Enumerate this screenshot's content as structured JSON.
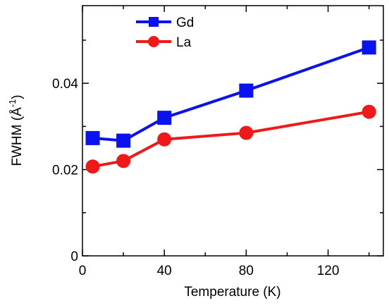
{
  "chart_data": {
    "type": "line",
    "xlabel": "Temperature (K)",
    "ylabel": {
      "prefix": "FWHM (Å",
      "superscript": "-1",
      "suffix": ")"
    },
    "x_tick_labels": [
      "0",
      "40",
      "80",
      "120"
    ],
    "y_tick_labels": [
      "0",
      "0.02",
      "0.04"
    ],
    "x_ticks": [
      0,
      20,
      40,
      60,
      80,
      100,
      120,
      140
    ],
    "y_ticks": [
      0,
      0.01,
      0.02,
      0.03,
      0.04,
      0.05
    ],
    "labeled_x_ticks": [
      0,
      40,
      80,
      120
    ],
    "labeled_y_ticks": [
      0,
      0.02,
      0.04
    ],
    "xlim": [
      0,
      147
    ],
    "ylim": [
      0,
      0.058
    ],
    "grid": false,
    "legend_position": "top-left",
    "series": [
      {
        "name": "Gd",
        "color": "#0a12f0",
        "marker": "square",
        "x": [
          5,
          20,
          40,
          80,
          140
        ],
        "y": [
          0.0273,
          0.0267,
          0.032,
          0.0383,
          0.0483
        ]
      },
      {
        "name": "La",
        "color": "#f01818",
        "marker": "circle",
        "x": [
          5,
          20,
          40,
          80,
          140
        ],
        "y": [
          0.0207,
          0.022,
          0.027,
          0.0285,
          0.0334
        ]
      }
    ]
  }
}
